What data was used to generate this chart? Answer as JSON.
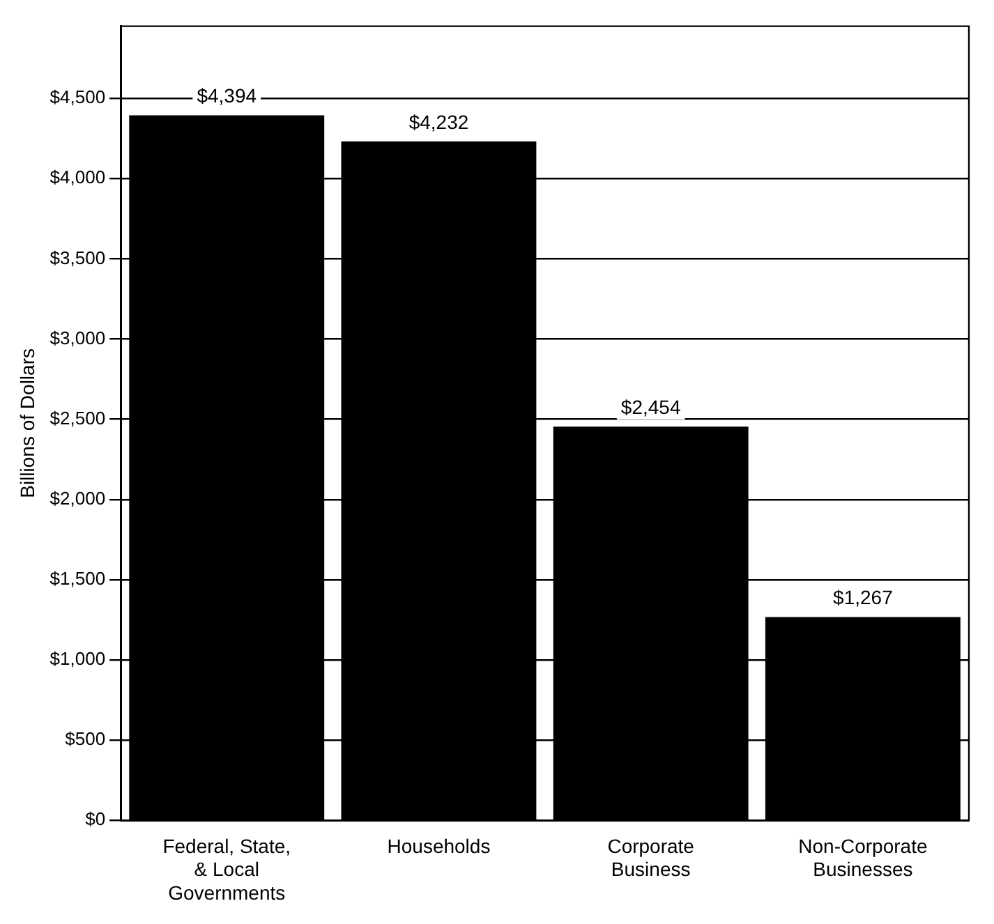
{
  "chart_data": {
    "type": "bar",
    "ylabel": "Billions of Dollars",
    "categories": [
      "Federal, State, & Local Governments",
      "Households",
      "Corporate Business",
      "Non-Corporate Businesses"
    ],
    "values": [
      4394,
      4232,
      2454,
      1267
    ],
    "color": "#000000",
    "value_labels": [
      "$4,394",
      "$4,232",
      "$2,454",
      "$1,267"
    ],
    "ylim": [
      0,
      4950
    ],
    "yticks": [
      {
        "value": 0,
        "label": "$0"
      },
      {
        "value": 500,
        "label": "$500"
      },
      {
        "value": 1000,
        "label": "$1,000"
      },
      {
        "value": 1500,
        "label": "$1,500"
      },
      {
        "value": 2000,
        "label": "$2,000"
      },
      {
        "value": 2500,
        "label": "$2,500"
      },
      {
        "value": 3000,
        "label": "$3,000"
      },
      {
        "value": 3500,
        "label": "$3,500"
      },
      {
        "value": 4000,
        "label": "$4,000"
      },
      {
        "value": 4500,
        "label": "$4,500"
      }
    ],
    "grid": "y",
    "legend": false
  }
}
